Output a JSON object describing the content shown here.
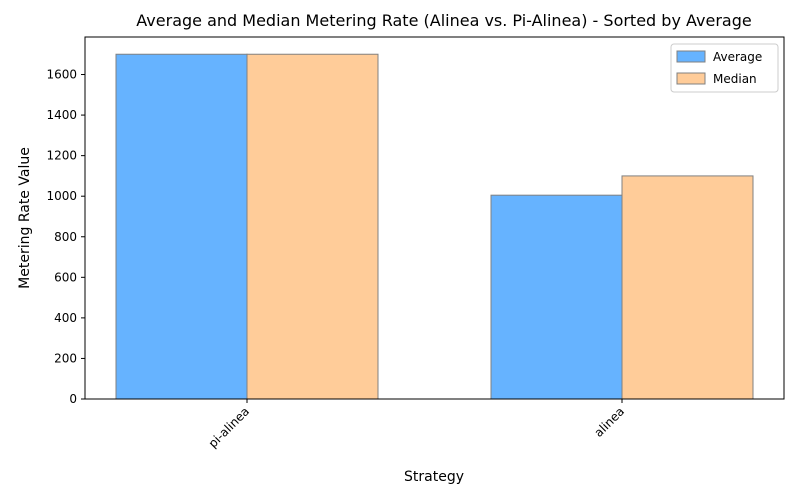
{
  "chart_data": {
    "type": "bar",
    "title": "Average and Median Metering Rate (Alinea vs. Pi-Alinea) - Sorted by Average",
    "xlabel": "Strategy",
    "ylabel": "Metering Rate Value",
    "categories": [
      "pi-alinea",
      "alinea"
    ],
    "series": [
      {
        "name": "Average",
        "values": [
          1700,
          1005
        ],
        "color": "#66b3ff"
      },
      {
        "name": "Median",
        "values": [
          1700,
          1100
        ],
        "color": "#ffcc99"
      }
    ],
    "ylim": [
      0,
      1785
    ],
    "yticks": [
      0,
      200,
      400,
      600,
      800,
      1000,
      1200,
      1400,
      1600
    ],
    "grid": false,
    "legend_position": "top-right"
  }
}
